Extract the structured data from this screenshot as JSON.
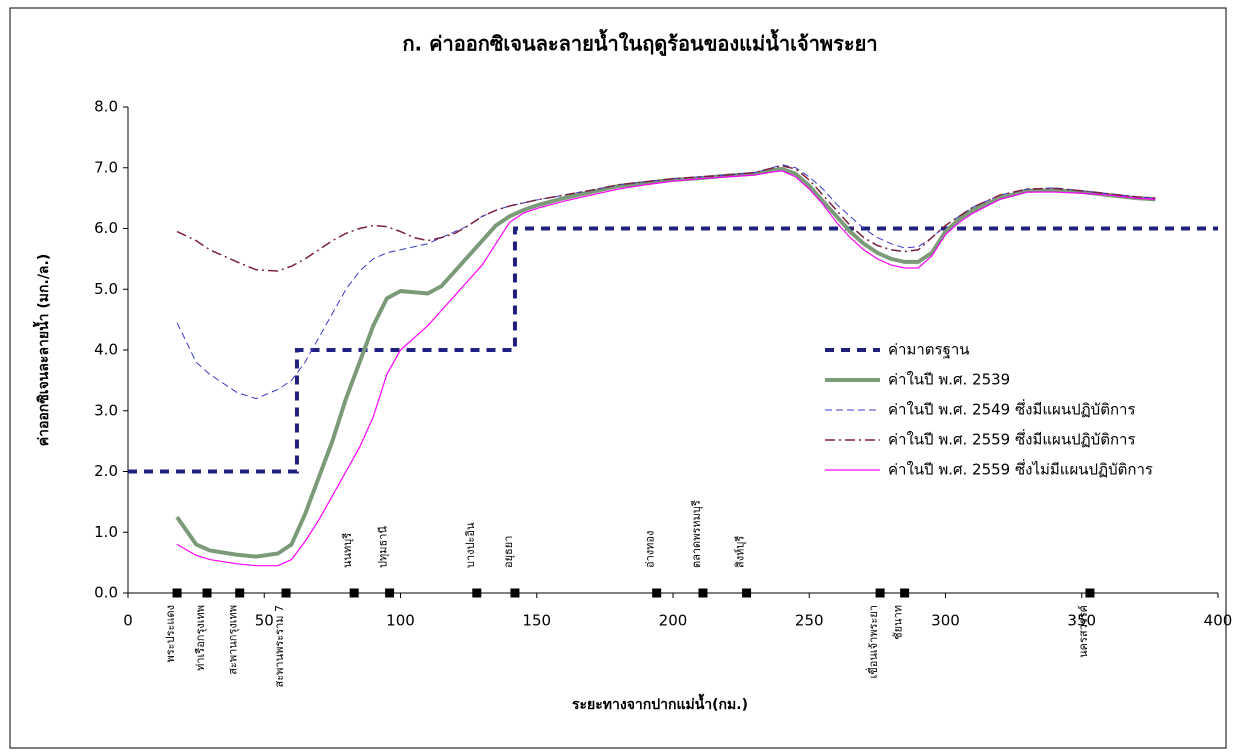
{
  "chart_data": {
    "type": "line",
    "title": "ก. ค่าออกซิเจนละลายน้ำในฤดูร้อนของแม่น้ำเจ้าพระยา",
    "x_label": "ระยะทางจากปากแม่น้ำ(กม.)",
    "y_label": "ค่าออกซิเจนละลายน้ำ (มก./ล.)",
    "xlim": [
      0,
      400
    ],
    "xticks": [
      0,
      50,
      100,
      150,
      200,
      250,
      300,
      350,
      400
    ],
    "ylim": [
      0,
      8
    ],
    "yticks": [
      {
        "value": 0,
        "label": "0.0"
      },
      {
        "value": 1,
        "label": "1.0"
      },
      {
        "value": 2,
        "label": "2.0"
      },
      {
        "value": 3,
        "label": "3.0"
      },
      {
        "value": 4,
        "label": "4.0"
      },
      {
        "value": 5,
        "label": "5.0"
      },
      {
        "value": 6,
        "label": "6.0"
      },
      {
        "value": 7,
        "label": "7.0"
      },
      {
        "value": 8,
        "label": "8.0"
      }
    ],
    "legend": "right",
    "series": [
      {
        "name": "ค่ามาตรฐาน",
        "color": "#1f2080",
        "line_style": "dotted",
        "width": 4,
        "x": [
          0,
          62,
          62,
          142,
          142,
          400
        ],
        "values": [
          2,
          2,
          4,
          4,
          6,
          6
        ]
      },
      {
        "name": "ค่าในปี พ.ศ. 2539",
        "color": "#7a9a78",
        "line_style": "solid",
        "width": 4,
        "x": [
          18,
          25,
          30,
          40,
          47,
          55,
          60,
          65,
          70,
          75,
          80,
          85,
          90,
          95,
          100,
          105,
          110,
          115,
          120,
          125,
          130,
          135,
          140,
          145,
          150,
          160,
          170,
          180,
          190,
          200,
          210,
          220,
          230,
          235,
          240,
          245,
          250,
          255,
          260,
          265,
          270,
          275,
          280,
          285,
          290,
          295,
          300,
          305,
          310,
          320,
          330,
          340,
          350,
          360,
          370,
          377
        ],
        "values": [
          1.25,
          0.8,
          0.7,
          0.63,
          0.6,
          0.65,
          0.8,
          1.3,
          1.9,
          2.5,
          3.2,
          3.8,
          4.4,
          4.85,
          4.97,
          4.95,
          4.93,
          5.05,
          5.3,
          5.55,
          5.8,
          6.05,
          6.2,
          6.3,
          6.38,
          6.5,
          6.6,
          6.7,
          6.75,
          6.8,
          6.83,
          6.87,
          6.9,
          6.95,
          6.98,
          6.9,
          6.7,
          6.45,
          6.2,
          5.95,
          5.75,
          5.6,
          5.5,
          5.45,
          5.45,
          5.6,
          5.95,
          6.15,
          6.3,
          6.5,
          6.62,
          6.63,
          6.6,
          6.55,
          6.5,
          6.48
        ]
      },
      {
        "name": "ค่าในปี พ.ศ. 2549 ซึ่งมีแผนปฏิบัติการ",
        "color": "#3a3acd",
        "line_style": "dashed",
        "width": 1,
        "x": [
          18,
          25,
          30,
          40,
          47,
          55,
          60,
          65,
          70,
          75,
          80,
          85,
          90,
          95,
          100,
          105,
          110,
          115,
          120,
          125,
          130,
          135,
          140,
          145,
          150,
          160,
          170,
          180,
          190,
          200,
          210,
          220,
          230,
          235,
          240,
          245,
          250,
          255,
          260,
          265,
          270,
          275,
          280,
          285,
          290,
          295,
          300,
          305,
          310,
          320,
          330,
          340,
          350,
          360,
          370,
          377
        ],
        "values": [
          4.45,
          3.8,
          3.6,
          3.3,
          3.2,
          3.35,
          3.5,
          3.8,
          4.2,
          4.6,
          5.0,
          5.3,
          5.5,
          5.6,
          5.65,
          5.7,
          5.75,
          5.85,
          5.95,
          6.05,
          6.2,
          6.3,
          6.37,
          6.42,
          6.47,
          6.55,
          6.63,
          6.72,
          6.77,
          6.82,
          6.85,
          6.88,
          6.92,
          6.98,
          7.05,
          7.0,
          6.85,
          6.65,
          6.4,
          6.2,
          6.0,
          5.85,
          5.75,
          5.68,
          5.7,
          5.85,
          6.05,
          6.2,
          6.35,
          6.55,
          6.65,
          6.67,
          6.62,
          6.57,
          6.52,
          6.5
        ]
      },
      {
        "name": "ค่าในปี พ.ศ. 2559 ซึ่งมีแผนปฏิบัติการ",
        "color": "#7a2040",
        "line_style": "dashdot",
        "width": 1.5,
        "x": [
          18,
          25,
          30,
          40,
          47,
          55,
          60,
          65,
          70,
          75,
          80,
          85,
          90,
          95,
          100,
          105,
          110,
          115,
          120,
          125,
          130,
          135,
          140,
          145,
          150,
          160,
          170,
          180,
          190,
          200,
          210,
          220,
          230,
          235,
          240,
          245,
          250,
          255,
          260,
          265,
          270,
          275,
          280,
          285,
          290,
          295,
          300,
          305,
          310,
          320,
          330,
          340,
          350,
          360,
          370,
          377
        ],
        "values": [
          5.95,
          5.8,
          5.65,
          5.45,
          5.32,
          5.3,
          5.38,
          5.5,
          5.65,
          5.8,
          5.92,
          6.0,
          6.05,
          6.03,
          5.95,
          5.85,
          5.8,
          5.85,
          5.92,
          6.05,
          6.2,
          6.3,
          6.37,
          6.42,
          6.47,
          6.55,
          6.63,
          6.72,
          6.77,
          6.82,
          6.85,
          6.88,
          6.92,
          6.98,
          7.03,
          6.98,
          6.8,
          6.55,
          6.3,
          6.05,
          5.85,
          5.72,
          5.65,
          5.62,
          5.65,
          5.85,
          6.05,
          6.2,
          6.35,
          6.55,
          6.65,
          6.66,
          6.62,
          6.57,
          6.52,
          6.5
        ]
      },
      {
        "name": "ค่าในปี พ.ศ. 2559 ซึ่งไม่มีแผนปฏิบัติการ",
        "color": "#ff00ff",
        "line_style": "solid",
        "width": 1.2,
        "x": [
          18,
          25,
          30,
          40,
          47,
          55,
          60,
          65,
          70,
          75,
          80,
          85,
          90,
          95,
          100,
          105,
          110,
          115,
          120,
          125,
          130,
          135,
          140,
          145,
          150,
          160,
          170,
          180,
          190,
          200,
          210,
          220,
          230,
          235,
          240,
          245,
          250,
          255,
          260,
          265,
          270,
          275,
          280,
          285,
          290,
          295,
          300,
          305,
          310,
          320,
          330,
          340,
          350,
          360,
          370,
          377
        ],
        "values": [
          0.8,
          0.62,
          0.55,
          0.48,
          0.45,
          0.45,
          0.55,
          0.85,
          1.2,
          1.6,
          2.0,
          2.4,
          2.9,
          3.6,
          4.0,
          4.2,
          4.4,
          4.65,
          4.9,
          5.15,
          5.4,
          5.75,
          6.1,
          6.25,
          6.33,
          6.45,
          6.55,
          6.65,
          6.72,
          6.78,
          6.82,
          6.85,
          6.88,
          6.92,
          6.95,
          6.85,
          6.65,
          6.4,
          6.1,
          5.85,
          5.65,
          5.5,
          5.4,
          5.35,
          5.35,
          5.55,
          5.9,
          6.1,
          6.25,
          6.48,
          6.6,
          6.6,
          6.58,
          6.55,
          6.5,
          6.48
        ]
      }
    ],
    "stations": {
      "x": [
        18,
        29,
        41,
        58,
        83,
        96,
        128,
        142,
        194,
        211,
        227,
        276,
        285,
        353
      ],
      "labels": [
        "พระประแดง",
        "ท่าเรือกรุงเทพ",
        "สะพานกรุงเทพ",
        "สะพานพระราม 7",
        "นนทบุรี",
        "ปทุมธานี",
        "บางปะอิน",
        "อยุธยา",
        "อ่างทอง",
        "ตลาดพรหมบุรี",
        "สิงห์บุรี",
        "เขื่อนเจ้าพระยา",
        "ชัยนาท",
        "นครสวรรค์"
      ],
      "label_side": [
        "below",
        "below",
        "below",
        "below",
        "above",
        "above",
        "above",
        "above",
        "above",
        "above",
        "above",
        "below",
        "below",
        "below"
      ]
    }
  }
}
